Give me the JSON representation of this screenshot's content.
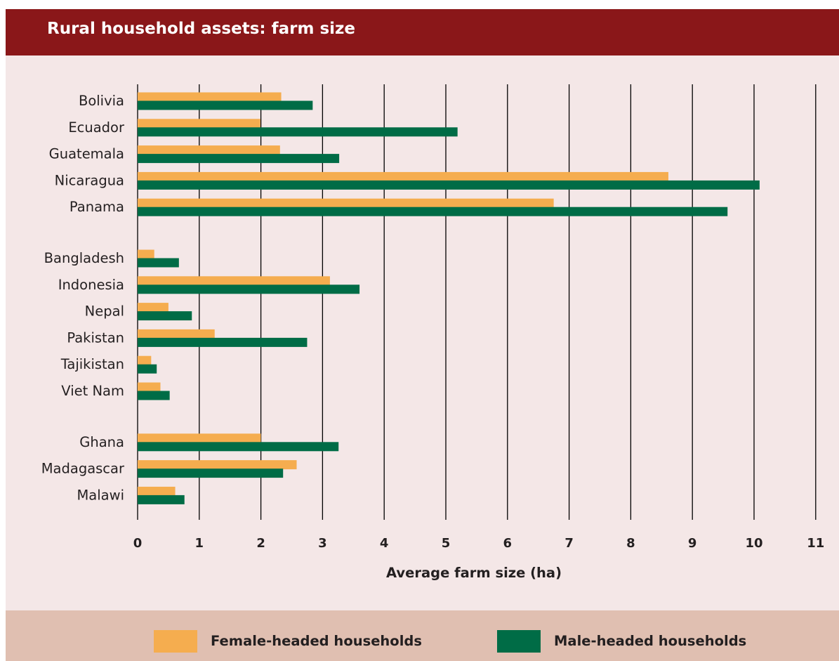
{
  "header": {
    "title": "Rural household assets: farm size"
  },
  "colors": {
    "header_bg": "#8a1719",
    "plot_bg": "#f4e7e7",
    "legend_bg": "#e0bfb1",
    "female": "#f5ad4f",
    "male": "#006c46",
    "gridline": "#000000",
    "text": "#231f20"
  },
  "chart_data": {
    "type": "bar",
    "orientation": "horizontal",
    "title": "Rural household assets: farm size",
    "xlabel": "Average farm size (ha)",
    "ylabel": "",
    "xlim": [
      0,
      11
    ],
    "xticks": [
      0,
      1,
      2,
      3,
      4,
      5,
      6,
      7,
      8,
      9,
      10,
      11
    ],
    "grid": "vertical",
    "legend_placement": "bottom",
    "groups": [
      {
        "categories": [
          "Bolivia",
          "Ecuador",
          "Guatemala",
          "Nicaragua",
          "Panama"
        ]
      },
      {
        "categories": [
          "Bangladesh",
          "Indonesia",
          "Nepal",
          "Pakistan",
          "Tajikistan",
          "Viet Nam"
        ]
      },
      {
        "categories": [
          "Ghana",
          "Madagascar",
          "Malawi"
        ]
      }
    ],
    "categories": [
      "Bolivia",
      "Ecuador",
      "Guatemala",
      "Nicaragua",
      "Panama",
      "Bangladesh",
      "Indonesia",
      "Nepal",
      "Pakistan",
      "Tajikistan",
      "Viet Nam",
      "Ghana",
      "Madagascar",
      "Malawi"
    ],
    "series": [
      {
        "name": "Female-headed households",
        "color": "#f5ad4f",
        "values": [
          2.33,
          1.99,
          2.31,
          8.61,
          6.75,
          0.27,
          3.12,
          0.5,
          1.25,
          0.22,
          0.37,
          2.0,
          2.58,
          0.61
        ]
      },
      {
        "name": "Male-headed households",
        "color": "#006c46",
        "values": [
          2.84,
          5.19,
          3.27,
          10.09,
          9.57,
          0.67,
          3.6,
          0.88,
          2.75,
          0.31,
          0.52,
          3.26,
          2.36,
          0.76
        ]
      }
    ]
  }
}
